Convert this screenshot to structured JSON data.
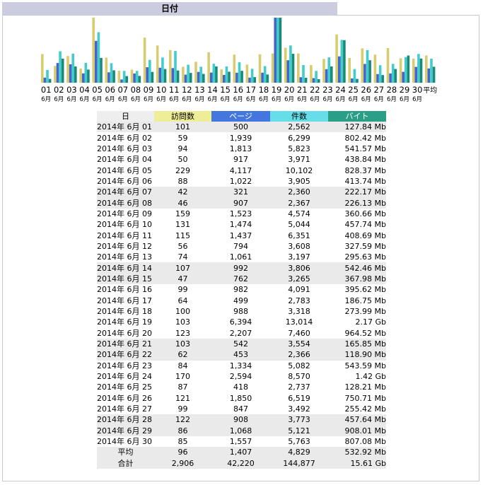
{
  "title": "日付",
  "headers": {
    "date": "日",
    "visits": "訪問数",
    "pages": "ページ",
    "hits": "件数",
    "bytes": "バイト"
  },
  "month_label": "6月",
  "avg_label": "平均",
  "total_label": "合計",
  "colors": {
    "visits": "#d8cc70",
    "pages": "#4466cc",
    "hits": "#44cccc",
    "bytes": "#1a8a78"
  },
  "rows": [
    {
      "date": "2014年 6月 01",
      "visits": "101",
      "pages": "500",
      "hits": "2,562",
      "bytes": "127.84 Mb",
      "weekend": true
    },
    {
      "date": "2014年 6月 02",
      "visits": "59",
      "pages": "1,939",
      "hits": "6,299",
      "bytes": "802.42 Mb",
      "weekend": false
    },
    {
      "date": "2014年 6月 03",
      "visits": "94",
      "pages": "1,813",
      "hits": "5,823",
      "bytes": "541.57 Mb",
      "weekend": false
    },
    {
      "date": "2014年 6月 04",
      "visits": "50",
      "pages": "917",
      "hits": "3,971",
      "bytes": "438.84 Mb",
      "weekend": false
    },
    {
      "date": "2014年 6月 05",
      "visits": "229",
      "pages": "4,117",
      "hits": "10,102",
      "bytes": "828.37 Mb",
      "weekend": false
    },
    {
      "date": "2014年 6月 06",
      "visits": "88",
      "pages": "1,022",
      "hits": "3,905",
      "bytes": "413.74 Mb",
      "weekend": false
    },
    {
      "date": "2014年 6月 07",
      "visits": "42",
      "pages": "321",
      "hits": "2,360",
      "bytes": "222.17 Mb",
      "weekend": true
    },
    {
      "date": "2014年 6月 08",
      "visits": "46",
      "pages": "907",
      "hits": "2,367",
      "bytes": "226.13 Mb",
      "weekend": true
    },
    {
      "date": "2014年 6月 09",
      "visits": "159",
      "pages": "1,523",
      "hits": "4,574",
      "bytes": "360.66 Mb",
      "weekend": false
    },
    {
      "date": "2014年 6月 10",
      "visits": "131",
      "pages": "1,474",
      "hits": "5,044",
      "bytes": "457.74 Mb",
      "weekend": false
    },
    {
      "date": "2014年 6月 11",
      "visits": "115",
      "pages": "1,437",
      "hits": "6,351",
      "bytes": "408.69 Mb",
      "weekend": false
    },
    {
      "date": "2014年 6月 12",
      "visits": "56",
      "pages": "794",
      "hits": "3,608",
      "bytes": "327.59 Mb",
      "weekend": false
    },
    {
      "date": "2014年 6月 13",
      "visits": "74",
      "pages": "1,061",
      "hits": "3,197",
      "bytes": "295.63 Mb",
      "weekend": false
    },
    {
      "date": "2014年 6月 14",
      "visits": "107",
      "pages": "992",
      "hits": "3,806",
      "bytes": "542.46 Mb",
      "weekend": true
    },
    {
      "date": "2014年 6月 15",
      "visits": "47",
      "pages": "762",
      "hits": "3,265",
      "bytes": "367.98 Mb",
      "weekend": true
    },
    {
      "date": "2014年 6月 16",
      "visits": "99",
      "pages": "982",
      "hits": "4,091",
      "bytes": "395.62 Mb",
      "weekend": false
    },
    {
      "date": "2014年 6月 17",
      "visits": "64",
      "pages": "499",
      "hits": "2,783",
      "bytes": "186.75 Mb",
      "weekend": false
    },
    {
      "date": "2014年 6月 18",
      "visits": "100",
      "pages": "988",
      "hits": "3,318",
      "bytes": "273.99 Mb",
      "weekend": false
    },
    {
      "date": "2014年 6月 19",
      "visits": "103",
      "pages": "6,394",
      "hits": "13,014",
      "bytes": "2.17 Gb",
      "weekend": false
    },
    {
      "date": "2014年 6月 20",
      "visits": "123",
      "pages": "2,207",
      "hits": "7,460",
      "bytes": "964.52 Mb",
      "weekend": false
    },
    {
      "date": "2014年 6月 21",
      "visits": "103",
      "pages": "542",
      "hits": "3,554",
      "bytes": "165.85 Mb",
      "weekend": true
    },
    {
      "date": "2014年 6月 22",
      "visits": "62",
      "pages": "453",
      "hits": "2,366",
      "bytes": "118.90 Mb",
      "weekend": true
    },
    {
      "date": "2014年 6月 23",
      "visits": "84",
      "pages": "1,334",
      "hits": "5,082",
      "bytes": "543.59 Mb",
      "weekend": false
    },
    {
      "date": "2014年 6月 24",
      "visits": "170",
      "pages": "2,594",
      "hits": "8,570",
      "bytes": "1.42 Gb",
      "weekend": false
    },
    {
      "date": "2014年 6月 25",
      "visits": "87",
      "pages": "418",
      "hits": "2,737",
      "bytes": "128.21 Mb",
      "weekend": false
    },
    {
      "date": "2014年 6月 26",
      "visits": "121",
      "pages": "1,850",
      "hits": "6,519",
      "bytes": "750.71 Mb",
      "weekend": false
    },
    {
      "date": "2014年 6月 27",
      "visits": "99",
      "pages": "847",
      "hits": "3,492",
      "bytes": "255.42 Mb",
      "weekend": false
    },
    {
      "date": "2014年 6月 28",
      "visits": "122",
      "pages": "908",
      "hits": "3,773",
      "bytes": "457.64 Mb",
      "weekend": true
    },
    {
      "date": "2014年 6月 29",
      "visits": "86",
      "pages": "1,068",
      "hits": "5,121",
      "bytes": "908.01 Mb",
      "weekend": true
    },
    {
      "date": "2014年 6月 30",
      "visits": "85",
      "pages": "1,557",
      "hits": "5,763",
      "bytes": "807.08 Mb",
      "weekend": false
    }
  ],
  "average": {
    "visits": "96",
    "pages": "1,407",
    "hits": "4,829",
    "bytes": "532.92 Mb"
  },
  "total": {
    "visits": "2,906",
    "pages": "42,220",
    "hits": "144,877",
    "bytes": "15.61 Gb"
  },
  "chart_data": {
    "type": "bar",
    "categories": [
      "01",
      "02",
      "03",
      "04",
      "05",
      "06",
      "07",
      "08",
      "09",
      "10",
      "11",
      "12",
      "13",
      "14",
      "15",
      "16",
      "17",
      "18",
      "19",
      "20",
      "21",
      "22",
      "23",
      "24",
      "25",
      "26",
      "27",
      "28",
      "29",
      "30",
      "平均"
    ],
    "category_sublabel": "6月",
    "series": [
      {
        "name": "訪問数",
        "values": [
          101,
          59,
          94,
          50,
          229,
          88,
          42,
          46,
          159,
          131,
          115,
          56,
          74,
          107,
          47,
          99,
          64,
          100,
          103,
          123,
          103,
          62,
          84,
          170,
          87,
          121,
          99,
          122,
          86,
          85,
          96
        ]
      },
      {
        "name": "ページ",
        "values": [
          500,
          1939,
          1813,
          917,
          4117,
          1022,
          321,
          907,
          1523,
          1474,
          1437,
          794,
          1061,
          992,
          762,
          982,
          499,
          988,
          6394,
          2207,
          542,
          453,
          1334,
          2594,
          418,
          1850,
          847,
          908,
          1068,
          1557,
          1407
        ]
      },
      {
        "name": "件数",
        "values": [
          2562,
          6299,
          5823,
          3971,
          10102,
          3905,
          2360,
          2367,
          4574,
          5044,
          6351,
          3608,
          3197,
          3806,
          3265,
          4091,
          2783,
          3318,
          13014,
          7460,
          3554,
          2366,
          5082,
          8570,
          2737,
          6519,
          3492,
          3773,
          5121,
          5763,
          4829
        ]
      },
      {
        "name": "バイト",
        "values": [
          127.84,
          802.42,
          541.57,
          438.84,
          828.37,
          413.74,
          222.17,
          226.13,
          360.66,
          457.74,
          408.69,
          327.59,
          295.63,
          542.46,
          367.98,
          395.62,
          186.75,
          273.99,
          2170,
          964.52,
          165.85,
          118.9,
          543.59,
          1420,
          128.21,
          750.71,
          255.42,
          457.64,
          908.01,
          807.08,
          532.92
        ]
      }
    ]
  }
}
